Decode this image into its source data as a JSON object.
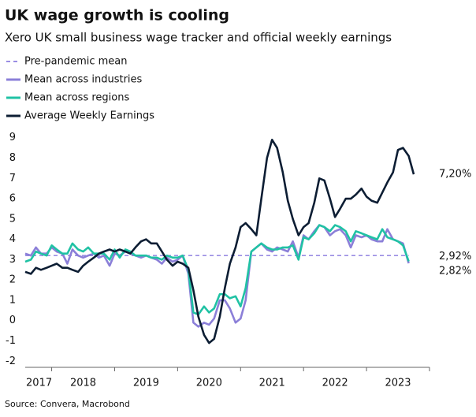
{
  "chart_data": {
    "type": "line",
    "title": "UK wage growth is cooling",
    "subtitle": "Xero UK small business wage tracker and official weekly earnings",
    "source": "Source: Convera, Macrobond",
    "xlim": [
      2017.58,
      2024.0
    ],
    "ylim": [
      -2.3,
      9.3
    ],
    "yticks": [
      -2,
      -1,
      0,
      1,
      2,
      3,
      4,
      5,
      6,
      7,
      8,
      9
    ],
    "xticks": [
      {
        "value": 2017.8,
        "label": "2017"
      },
      {
        "value": 2018.5,
        "label": "2018"
      },
      {
        "value": 2019.5,
        "label": "2019"
      },
      {
        "value": 2020.5,
        "label": "2020"
      },
      {
        "value": 2021.5,
        "label": "2021"
      },
      {
        "value": 2022.5,
        "label": "2022"
      },
      {
        "value": 2023.5,
        "label": "2023"
      }
    ],
    "xtick_marks": [
      2018,
      2019,
      2020,
      2021,
      2022,
      2023,
      2024
    ],
    "grid": false,
    "x": [
      2017.58,
      2017.67,
      2017.75,
      2017.83,
      2017.92,
      2018.0,
      2018.08,
      2018.17,
      2018.25,
      2018.33,
      2018.42,
      2018.5,
      2018.58,
      2018.67,
      2018.75,
      2018.83,
      2018.92,
      2019.0,
      2019.08,
      2019.17,
      2019.25,
      2019.33,
      2019.42,
      2019.5,
      2019.58,
      2019.67,
      2019.75,
      2019.83,
      2019.92,
      2020.0,
      2020.08,
      2020.17,
      2020.25,
      2020.33,
      2020.42,
      2020.5,
      2020.58,
      2020.67,
      2020.75,
      2020.83,
      2020.92,
      2021.0,
      2021.08,
      2021.17,
      2021.25,
      2021.33,
      2021.42,
      2021.5,
      2021.58,
      2021.67,
      2021.75,
      2021.83,
      2021.92,
      2022.0,
      2022.08,
      2022.17,
      2022.25,
      2022.33,
      2022.42,
      2022.5,
      2022.58,
      2022.67,
      2022.75,
      2022.83,
      2022.92,
      2023.0,
      2023.08,
      2023.17,
      2023.25,
      2023.33,
      2023.42,
      2023.5,
      2023.58,
      2023.67,
      2023.75
    ],
    "series": [
      {
        "name": "Pre-pandemic mean",
        "color": "#9a8de3",
        "dashed": true,
        "x": [
          2017.58,
          2023.67
        ],
        "values": [
          3.2,
          3.2
        ]
      },
      {
        "name": "Mean across industries",
        "color": "#8b7fd8",
        "dashed": false,
        "end_label": {
          "value": 2.82,
          "label": "2,82%"
        },
        "values": [
          3.3,
          3.2,
          3.6,
          3.3,
          3.3,
          3.6,
          3.4,
          3.3,
          2.8,
          3.5,
          3.2,
          3.1,
          3.2,
          3.3,
          3.1,
          3.2,
          2.7,
          3.3,
          3.2,
          3.4,
          3.3,
          3.2,
          3.1,
          3.2,
          3.1,
          3.0,
          2.8,
          3.1,
          2.9,
          3.0,
          3.2,
          2.3,
          -0.1,
          -0.3,
          -0.1,
          -0.2,
          0.1,
          1.0,
          1.0,
          0.6,
          -0.1,
          0.1,
          1.0,
          3.4,
          3.6,
          3.8,
          3.5,
          3.4,
          3.6,
          3.5,
          3.4,
          3.9,
          3.1,
          4.2,
          4.0,
          4.4,
          4.7,
          4.6,
          4.2,
          4.4,
          4.5,
          4.2,
          3.6,
          4.2,
          4.1,
          4.2,
          4.0,
          3.9,
          3.9,
          4.5,
          4.0,
          3.9,
          3.8,
          2.82,
          null
        ]
      },
      {
        "name": "Mean across regions",
        "color": "#20c2a4",
        "dashed": false,
        "end_label": {
          "value": 2.92,
          "label": "2,92%"
        },
        "values": [
          2.9,
          3.0,
          3.4,
          3.3,
          3.2,
          3.7,
          3.5,
          3.3,
          3.3,
          3.8,
          3.5,
          3.4,
          3.6,
          3.3,
          3.3,
          3.3,
          3.0,
          3.5,
          3.1,
          3.5,
          3.4,
          3.2,
          3.2,
          3.2,
          3.1,
          3.1,
          3.0,
          3.2,
          3.1,
          3.1,
          3.2,
          2.5,
          0.4,
          0.3,
          0.7,
          0.4,
          0.6,
          1.3,
          1.3,
          1.1,
          1.2,
          0.7,
          1.6,
          3.4,
          3.6,
          3.8,
          3.6,
          3.5,
          3.5,
          3.6,
          3.6,
          3.7,
          3.0,
          4.1,
          4.0,
          4.3,
          4.7,
          4.6,
          4.4,
          4.7,
          4.6,
          4.4,
          3.9,
          4.4,
          4.3,
          4.2,
          4.1,
          4.0,
          4.5,
          4.1,
          4.0,
          3.9,
          3.7,
          2.92,
          null
        ]
      },
      {
        "name": "Average Weekly Earnings",
        "color": "#0c1d33",
        "dashed": false,
        "end_label": {
          "value": 7.2,
          "label": "7,20%"
        },
        "values": [
          2.4,
          2.3,
          2.6,
          2.5,
          2.6,
          2.7,
          2.8,
          2.6,
          2.6,
          2.5,
          2.4,
          2.7,
          2.9,
          3.1,
          3.3,
          3.4,
          3.5,
          3.4,
          3.5,
          3.4,
          3.3,
          3.6,
          3.9,
          4.0,
          3.8,
          3.8,
          3.4,
          3.0,
          2.7,
          2.9,
          2.8,
          2.6,
          1.5,
          0.2,
          -0.7,
          -1.1,
          -0.9,
          0.2,
          1.6,
          2.8,
          3.6,
          4.6,
          4.8,
          4.5,
          4.2,
          6.0,
          8.0,
          8.9,
          8.5,
          7.3,
          5.9,
          5.0,
          4.2,
          4.6,
          4.8,
          5.8,
          7.0,
          6.9,
          6.0,
          5.1,
          5.5,
          6.0,
          6.0,
          6.2,
          6.5,
          6.1,
          5.9,
          5.8,
          6.3,
          6.8,
          7.3,
          8.4,
          8.5,
          8.1,
          7.2
        ]
      }
    ]
  }
}
